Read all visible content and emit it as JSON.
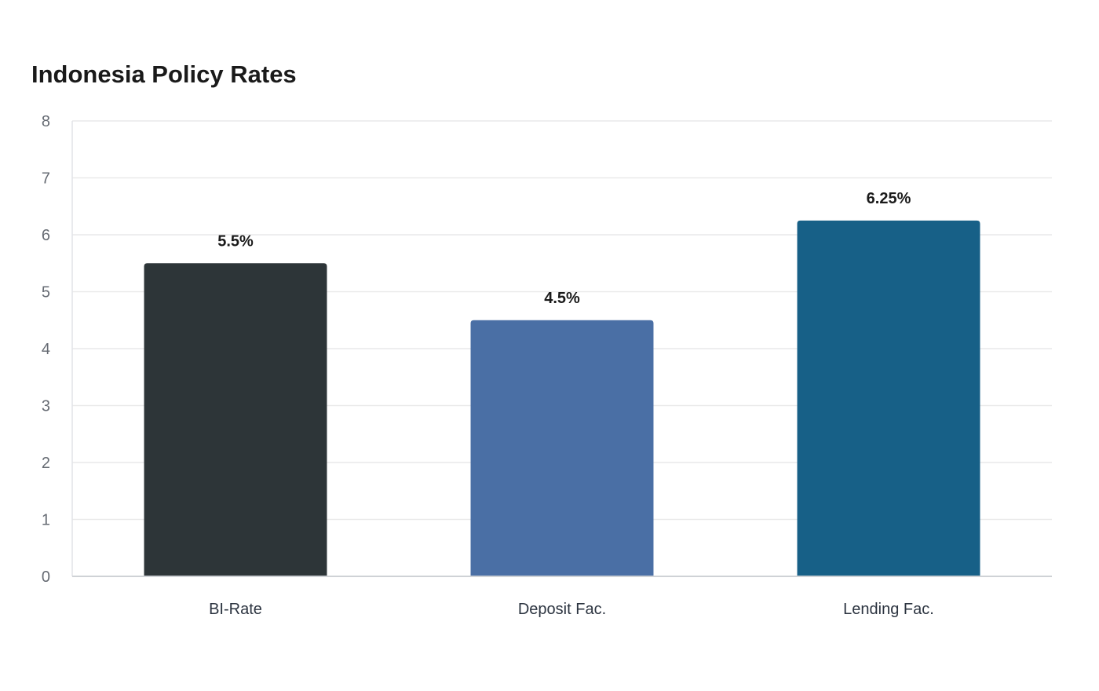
{
  "chart_data": {
    "type": "bar",
    "title": "Indonesia Policy Rates",
    "xlabel": "",
    "ylabel": "",
    "categories": [
      "BI-Rate",
      "Deposit Fac.",
      "Lending Fac."
    ],
    "values": [
      5.5,
      4.5,
      6.25
    ],
    "value_labels": [
      "5.5%",
      "4.5%",
      "6.25%"
    ],
    "colors": [
      "#2d3538",
      "#4a6fa5",
      "#176087"
    ],
    "ylim": [
      0,
      8
    ],
    "yticks": [
      "0",
      "1",
      "2",
      "3",
      "4",
      "5",
      "6",
      "7",
      "8"
    ],
    "grid": true,
    "gridline_color": "#e9e9ea",
    "axis_color": "#cfd2d6"
  }
}
